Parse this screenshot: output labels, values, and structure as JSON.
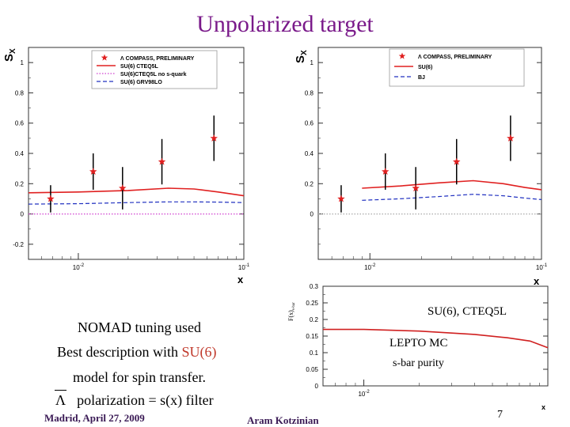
{
  "title": "Unpolarized target",
  "chart_data": [
    {
      "type": "scatter",
      "name": "left-panel",
      "ylabel": "S_x",
      "xlabel": "x",
      "xscale": "log",
      "xlim": [
        0.005,
        0.1
      ],
      "ylim": [
        -0.3,
        1.1
      ],
      "yticks": [
        -0.2,
        0,
        0.2,
        0.4,
        0.6,
        0.8,
        1
      ],
      "ytick_labels": [
        "-0.2",
        "0",
        "0.2",
        "0.4",
        "0.6",
        "0.8",
        "1"
      ],
      "xtick_labels": [
        "10^-2",
        "10^-1"
      ],
      "legend": [
        {
          "label": "Λ COMPASS, PRELIMINARY",
          "style": "star",
          "color": "#e02020"
        },
        {
          "label": "SU(6) CTEQ5L",
          "style": "solid",
          "color": "#e02020"
        },
        {
          "label": "SU(6)CTEQ5L no s-quark",
          "style": "dotted",
          "color": "#d040d0"
        },
        {
          "label": "SU(6) GRV98LO",
          "style": "dashed",
          "color": "#2030c0"
        }
      ],
      "points": [
        {
          "x": 0.0068,
          "y": 0.1,
          "err": 0.09
        },
        {
          "x": 0.0123,
          "y": 0.28,
          "err": 0.12
        },
        {
          "x": 0.0185,
          "y": 0.17,
          "err": 0.14
        },
        {
          "x": 0.032,
          "y": 0.345,
          "err": 0.15
        },
        {
          "x": 0.066,
          "y": 0.5,
          "err": 0.15
        }
      ],
      "series": [
        {
          "name": "SU(6) CTEQ5L",
          "style": "solid",
          "color": "#e02020",
          "x": [
            0.005,
            0.01,
            0.02,
            0.035,
            0.05,
            0.07,
            0.1
          ],
          "y": [
            0.14,
            0.145,
            0.155,
            0.17,
            0.165,
            0.145,
            0.12
          ]
        },
        {
          "name": "SU(6)CTEQ5L no s-quark",
          "style": "dotted",
          "color": "#d040d0",
          "x": [
            0.005,
            0.1
          ],
          "y": [
            0.0,
            0.0
          ]
        },
        {
          "name": "SU(6) GRV98LO",
          "style": "dashed",
          "color": "#2030c0",
          "x": [
            0.005,
            0.01,
            0.02,
            0.035,
            0.05,
            0.07,
            0.1
          ],
          "y": [
            0.065,
            0.068,
            0.075,
            0.08,
            0.08,
            0.078,
            0.075
          ]
        }
      ]
    },
    {
      "type": "scatter",
      "name": "right-panel",
      "ylabel": "S_x",
      "xlabel": "x",
      "xscale": "log",
      "xlim": [
        0.005,
        0.1
      ],
      "ylim": [
        -0.3,
        1.1
      ],
      "yticks": [
        0,
        0.2,
        0.4,
        0.6,
        0.8,
        1
      ],
      "ytick_labels": [
        "0",
        "0.2",
        "0.4",
        "0.6",
        "0.8",
        "1"
      ],
      "xtick_labels": [
        "10^-2",
        "10^-1"
      ],
      "legend": [
        {
          "label": "Λ COMPASS, PRELIMINARY",
          "style": "star",
          "color": "#e02020"
        },
        {
          "label": "SU(6)",
          "style": "solid",
          "color": "#e02020"
        },
        {
          "label": "BJ",
          "style": "dashed",
          "color": "#2030c0"
        }
      ],
      "points": [
        {
          "x": 0.0068,
          "y": 0.1,
          "err": 0.09
        },
        {
          "x": 0.0123,
          "y": 0.28,
          "err": 0.12
        },
        {
          "x": 0.0185,
          "y": 0.17,
          "err": 0.14
        },
        {
          "x": 0.032,
          "y": 0.345,
          "err": 0.15
        },
        {
          "x": 0.066,
          "y": 0.5,
          "err": 0.15
        }
      ],
      "series": [
        {
          "name": "SU(6)",
          "style": "solid",
          "color": "#e02020",
          "x": [
            0.009,
            0.015,
            0.025,
            0.04,
            0.06,
            0.08,
            0.1
          ],
          "y": [
            0.17,
            0.185,
            0.205,
            0.22,
            0.2,
            0.175,
            0.16
          ]
        },
        {
          "name": "BJ",
          "style": "dashed",
          "color": "#2030c0",
          "x": [
            0.009,
            0.015,
            0.025,
            0.04,
            0.06,
            0.08,
            0.1
          ],
          "y": [
            0.09,
            0.1,
            0.115,
            0.13,
            0.12,
            0.105,
            0.095
          ]
        },
        {
          "name": "zero",
          "style": "dotted",
          "color": "#aaaaaa",
          "x": [
            0.005,
            0.1
          ],
          "y": [
            0.0,
            0.0
          ]
        }
      ]
    },
    {
      "type": "line",
      "name": "purity-panel",
      "ylabel": "F(x)_{s-bar}",
      "xlabel": "x",
      "xscale": "log",
      "xlim": [
        0.006,
        0.1
      ],
      "ylim": [
        0,
        0.3
      ],
      "yticks": [
        0,
        0.05,
        0.1,
        0.15,
        0.2,
        0.25,
        0.3
      ],
      "ytick_labels": [
        "0",
        "0.05",
        "0.1",
        "0.15",
        "0.2",
        "0.25",
        "0.3"
      ],
      "xtick_labels": [
        "10^-2"
      ],
      "series": [
        {
          "name": "s-bar purity",
          "style": "solid",
          "color": "#d02020",
          "x": [
            0.006,
            0.01,
            0.02,
            0.04,
            0.06,
            0.08,
            0.1
          ],
          "y": [
            0.17,
            0.17,
            0.165,
            0.155,
            0.145,
            0.135,
            0.115
          ]
        }
      ]
    }
  ],
  "labels": {
    "su6_cteq5l": "SU(6), CTEQ5L",
    "lepto_mc": "LEPTO MC",
    "sbar_purity": "s-bar purity"
  },
  "text": {
    "nomad": "NOMAD tuning used",
    "best_prefix": "Best description with ",
    "best_su6": "SU(6)",
    "model": "model for spin transfer.",
    "lambda_symbol": "Λ",
    "polarization": "polarization = s(x) filter"
  },
  "footer": {
    "left": "Madrid, April 27, 2009",
    "center": "Aram Kotzinian",
    "page": "7"
  }
}
